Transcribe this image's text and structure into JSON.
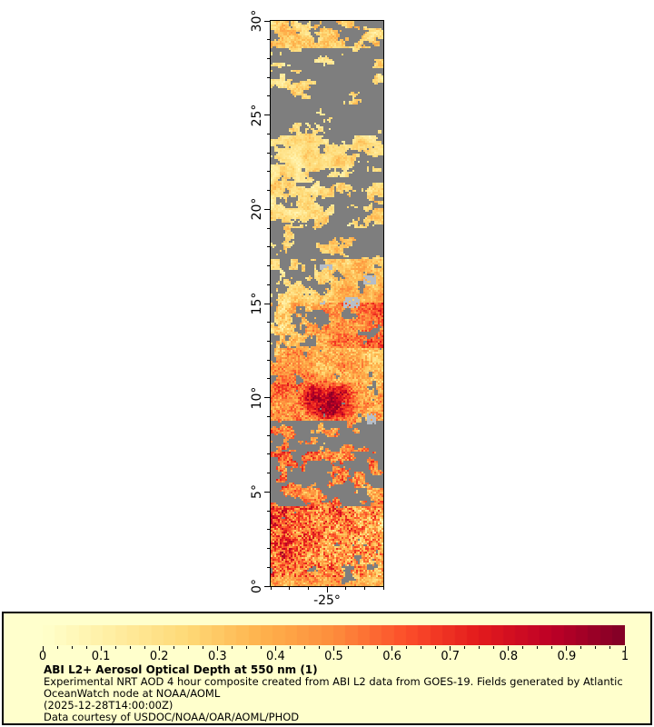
{
  "page": {
    "background": "#ffffff"
  },
  "map": {
    "name": "ABI L2+ Aerosol Optical Depth at 550 nm, GOES-19, tropical Atlantic strip",
    "extent": {
      "lon_min": -28,
      "lon_max": -22,
      "lat_min": 0,
      "lat_max": 30
    },
    "x_axis": {
      "major": [
        {
          "v": -25,
          "label": "-25°"
        }
      ],
      "minor_step": 1
    },
    "y_axis": {
      "major": [
        {
          "v": 0,
          "label": "0°"
        },
        {
          "v": 5,
          "label": "5°"
        },
        {
          "v": 10,
          "label": "10°"
        },
        {
          "v": 15,
          "label": "15°"
        },
        {
          "v": 20,
          "label": "20°"
        },
        {
          "v": 25,
          "label": "25°"
        },
        {
          "v": 30,
          "label": "30°"
        }
      ],
      "minor_step": 1
    },
    "no_data_color": "#7e7e7e",
    "island_color": "#b6bec8",
    "islands": [
      {
        "lon": [
          -25.35,
          -24.75
        ],
        "lat": [
          16.82,
          17.12
        ]
      },
      {
        "lon": [
          -23.05,
          -22.35
        ],
        "lat": [
          16.0,
          16.45
        ]
      },
      {
        "lon": [
          -24.15,
          -23.3
        ],
        "lat": [
          14.78,
          15.32
        ]
      },
      {
        "lon": [
          -25.4,
          -25.05
        ],
        "lat": [
          14.95,
          15.18
        ]
      },
      {
        "lon": [
          -22.9,
          -22.4
        ],
        "lat": [
          8.6,
          9.2
        ]
      }
    ],
    "blob": {
      "lon": -24.9,
      "lat": 9.8,
      "rlon": 1.7,
      "rlat": 1.15,
      "amp": 0.5
    },
    "bands": [
      {
        "lat": [
          28.6,
          30.01
        ],
        "cloud": 0.35,
        "cloud_east": 0.3,
        "aod": 0.26,
        "aod_east": 0.0,
        "speckle": 0.1,
        "streak": 1.6
      },
      {
        "lat": [
          23.9,
          28.6
        ],
        "cloud": 0.72,
        "cloud_east": 0.12,
        "aod": 0.22,
        "aod_east": 0.0,
        "speckle": 0.08,
        "streak": 2.2
      },
      {
        "lat": [
          21.4,
          23.9
        ],
        "cloud": 0.3,
        "cloud_east": 0.25,
        "aod": 0.2,
        "aod_east": 0.0,
        "speckle": 0.06,
        "streak": 1.8
      },
      {
        "lat": [
          19.0,
          21.4
        ],
        "cloud": 0.4,
        "cloud_east": 0.0,
        "aod": 0.22,
        "aod_east": 0.03,
        "speckle": 0.08,
        "streak": 1.4
      },
      {
        "lat": [
          17.4,
          19.0
        ],
        "cloud": 0.6,
        "cloud_east": 0.1,
        "aod": 0.24,
        "aod_east": 0.06,
        "speckle": 0.08,
        "streak": 1.4
      },
      {
        "lat": [
          15.0,
          17.4
        ],
        "cloud": 0.45,
        "cloud_east": -0.3,
        "aod": 0.22,
        "aod_east": 0.18,
        "speckle": 0.1,
        "streak": 1.0
      },
      {
        "lat": [
          12.6,
          15.0
        ],
        "cloud": 0.42,
        "cloud_east": -0.35,
        "aod": 0.26,
        "aod_east": 0.38,
        "speckle": 0.16,
        "streak": 1.0
      },
      {
        "lat": [
          10.8,
          12.6
        ],
        "cloud": 0.25,
        "cloud_east": -0.15,
        "aod": 0.45,
        "aod_east": -0.12,
        "speckle": 0.16,
        "streak": 1.0
      },
      {
        "lat": [
          8.8,
          10.8
        ],
        "cloud": 0.12,
        "cloud_east": 0.0,
        "aod": 0.5,
        "aod_east": -0.1,
        "speckle": 0.18,
        "streak": 1.0
      },
      {
        "lat": [
          7.1,
          8.8
        ],
        "cloud": 0.7,
        "cloud_east": -0.08,
        "aod": 0.5,
        "aod_east": -0.05,
        "speckle": 0.18,
        "streak": 1.3
      },
      {
        "lat": [
          5.2,
          7.1
        ],
        "cloud": 0.45,
        "cloud_east": 0.05,
        "aod": 0.55,
        "aod_east": -0.05,
        "speckle": 0.22,
        "streak": 1.0
      },
      {
        "lat": [
          4.2,
          5.2
        ],
        "cloud": 0.6,
        "cloud_east": -0.3,
        "aod": 0.5,
        "aod_east": -0.05,
        "speckle": 0.2,
        "streak": 1.2
      },
      {
        "lat": [
          0.5,
          4.2
        ],
        "cloud": 0.1,
        "cloud_east": 0.05,
        "aod": 0.62,
        "aod_east": -0.22,
        "speckle": 0.3,
        "streak": 1.0
      },
      {
        "lat": [
          0.0,
          0.5
        ],
        "cloud": 0.15,
        "cloud_east": 0.0,
        "aod": 0.45,
        "aod_east": -0.08,
        "speckle": 0.15,
        "streak": 1.0
      }
    ]
  },
  "legend": {
    "background": "#ffffcc",
    "border_color": "#000000",
    "colorbar": {
      "min": 0,
      "max": 1,
      "steps": 48,
      "minor_step": 0.025,
      "major_ticks": [
        {
          "v": 0,
          "label": "0"
        },
        {
          "v": 0.1,
          "label": "0.1"
        },
        {
          "v": 0.2,
          "label": "0.2"
        },
        {
          "v": 0.3,
          "label": "0.3"
        },
        {
          "v": 0.4,
          "label": "0.4"
        },
        {
          "v": 0.5,
          "label": "0.5"
        },
        {
          "v": 0.6,
          "label": "0.6"
        },
        {
          "v": 0.7,
          "label": "0.7"
        },
        {
          "v": 0.8,
          "label": "0.8"
        },
        {
          "v": 0.9,
          "label": "0.9"
        },
        {
          "v": 1,
          "label": "1"
        }
      ],
      "colormap": [
        [
          0,
          "#ffffcc"
        ],
        [
          0.125,
          "#ffeda0"
        ],
        [
          0.25,
          "#fed976"
        ],
        [
          0.375,
          "#feb24c"
        ],
        [
          0.5,
          "#fd8d3c"
        ],
        [
          0.625,
          "#fc4e2a"
        ],
        [
          0.75,
          "#e31a1c"
        ],
        [
          0.875,
          "#bd0026"
        ],
        [
          1,
          "#800026"
        ]
      ]
    },
    "title": "ABI L2+ Aerosol Optical Depth at 550 nm (1)",
    "lines": [
      "Experimental NRT AOD 4 hour composite created from ABI L2 data from GOES-19. Fields generated by Atlantic",
      "OceanWatch node at NOAA/AOML",
      "(2025-12-28T14:00:00Z)",
      "Data courtesy of USDOC/NOAA/OAR/AOML/PHOD"
    ]
  }
}
